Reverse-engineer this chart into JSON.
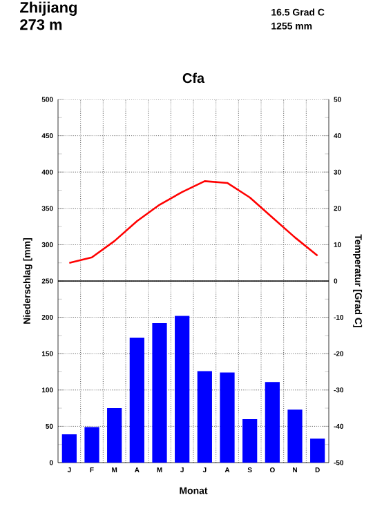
{
  "chart_data": {
    "type": "bar",
    "title": "Cfa",
    "subtitle": "Zhijiang",
    "annotations": [
      "273 m",
      "16.5 Grad C",
      "1255 mm"
    ],
    "xlabel": "Monat",
    "ylabel": "Niederschlag [mm]",
    "y2label": "Temperatur [Grad C]",
    "categories": [
      "J",
      "F",
      "M",
      "A",
      "M",
      "J",
      "J",
      "A",
      "S",
      "O",
      "N",
      "D"
    ],
    "series": [
      {
        "color": "#0000ff",
        "values": [
          39,
          49,
          75,
          172,
          192,
          202,
          126,
          124,
          60,
          111,
          73,
          33
        ]
      },
      {
        "type": "line",
        "axis": "y2",
        "color": "#ff0000",
        "values": [
          5,
          6.5,
          11,
          16.5,
          21,
          24.5,
          27.5,
          27,
          23,
          17.5,
          12,
          7
        ]
      }
    ],
    "ylim": [
      0,
      500
    ],
    "yticks": [
      0,
      50,
      100,
      150,
      200,
      250,
      300,
      350,
      400,
      450,
      500
    ],
    "y2lim": [
      -50,
      50
    ],
    "y2ticks": [
      -50,
      -40,
      -30,
      -20,
      -10,
      0,
      10,
      20,
      30,
      40,
      50
    ],
    "ref_lines": [
      {
        "axis": "y2",
        "value": 0,
        "color": "#000000"
      }
    ],
    "grid": true
  }
}
